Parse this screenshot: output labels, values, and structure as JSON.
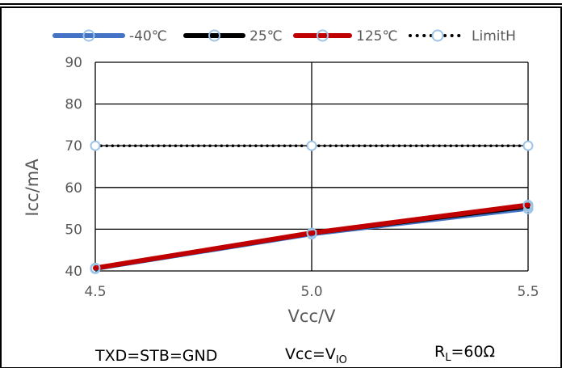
{
  "chart_data": {
    "type": "line",
    "xlabel": "Vcc/V",
    "ylabel": "Icc/mA",
    "x": [
      4.5,
      5.0,
      5.5
    ],
    "x_tick_labels": [
      "4.5",
      "5.0",
      "5.5"
    ],
    "xlim": [
      4.5,
      5.5
    ],
    "ylim": [
      40,
      90
    ],
    "y_ticks": [
      40,
      50,
      60,
      70,
      80,
      90
    ],
    "grid": true,
    "legend_position": "top",
    "series": [
      {
        "name": "-40℃",
        "values": [
          40.5,
          48.8,
          54.9
        ],
        "color": "#4472C4",
        "style": "solid",
        "marker": "circle"
      },
      {
        "name": "25℃",
        "values": [
          40.6,
          49.0,
          55.4
        ],
        "color": "#000000",
        "style": "solid",
        "marker": "circle"
      },
      {
        "name": "125℃",
        "values": [
          40.7,
          49.1,
          55.8
        ],
        "color": "#C00000",
        "style": "solid",
        "marker": "circle"
      },
      {
        "name": "LimitH",
        "values": [
          70,
          70,
          70
        ],
        "color": "#000000",
        "style": "dotted",
        "marker": "circle"
      }
    ],
    "annotations": {
      "cond1": "TXD=STB=GND",
      "cond2_main": "Vcc=V",
      "cond2_sub": "IO",
      "cond3_main": "R",
      "cond3_sub": "L",
      "cond3_tail": "=60Ω"
    }
  }
}
